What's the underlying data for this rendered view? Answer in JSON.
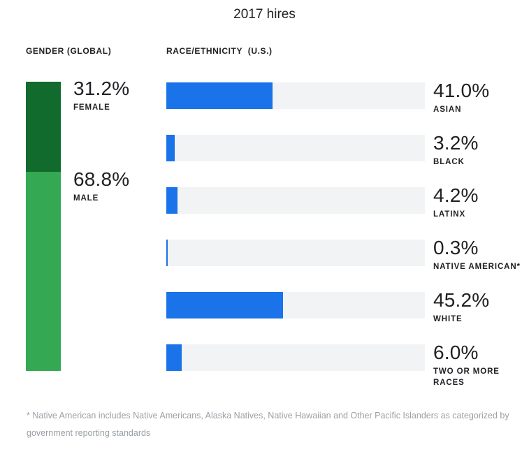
{
  "title": "2017 hires",
  "colors": {
    "female_green": "#116b2d",
    "male_green": "#34a853",
    "bar_blue": "#1a73e8",
    "track_gray": "#f1f3f4",
    "text_dark": "#202124",
    "footnote_gray": "#9aa0a6"
  },
  "gender": {
    "header": "GENDER (GLOBAL)",
    "segments": [
      {
        "label": "FEMALE",
        "pct": "31.2%",
        "value": 31.2
      },
      {
        "label": "MALE",
        "pct": "68.8%",
        "value": 68.8
      }
    ]
  },
  "race": {
    "header": "RACE/ETHNICITY  (U.S.)",
    "rows": [
      {
        "label": "ASIAN",
        "pct": "41.0%",
        "value": 41.0
      },
      {
        "label": "BLACK",
        "pct": "3.2%",
        "value": 3.2
      },
      {
        "label": "LATINX",
        "pct": "4.2%",
        "value": 4.2
      },
      {
        "label": "NATIVE AMERICAN*",
        "pct": "0.3%",
        "value": 0.3
      },
      {
        "label": "WHITE",
        "pct": "45.2%",
        "value": 45.2
      },
      {
        "label": "TWO OR MORE RACES",
        "pct": "6.0%",
        "value": 6.0
      }
    ]
  },
  "footnote": "* Native American includes Native Americans, Alaska Natives, Native Hawaiian and Other Pacific Islanders as categorized by government reporting standards",
  "chart_data": [
    {
      "type": "bar",
      "subtype": "vertical-stacked",
      "title": "GENDER (GLOBAL)",
      "categories": [
        "FEMALE",
        "MALE"
      ],
      "values": [
        31.2,
        68.8
      ],
      "unit": "%",
      "colors": [
        "#116b2d",
        "#34a853"
      ],
      "data_labels": [
        "31.2%",
        "68.8%"
      ],
      "axis": "none",
      "grid": false,
      "legend": false
    },
    {
      "type": "bar",
      "subtype": "horizontal",
      "title": "RACE/ETHNICITY (U.S.)",
      "categories": [
        "ASIAN",
        "BLACK",
        "LATINX",
        "NATIVE AMERICAN*",
        "WHITE",
        "TWO OR MORE RACES"
      ],
      "values": [
        41.0,
        3.2,
        4.2,
        0.3,
        45.2,
        6.0
      ],
      "unit": "%",
      "xlim": [
        0,
        100
      ],
      "bar_color": "#1a73e8",
      "track_color": "#f1f3f4",
      "data_labels": [
        "41.0%",
        "3.2%",
        "4.2%",
        "0.3%",
        "45.2%",
        "6.0%"
      ],
      "axis": "none",
      "grid": false,
      "legend": false
    }
  ]
}
